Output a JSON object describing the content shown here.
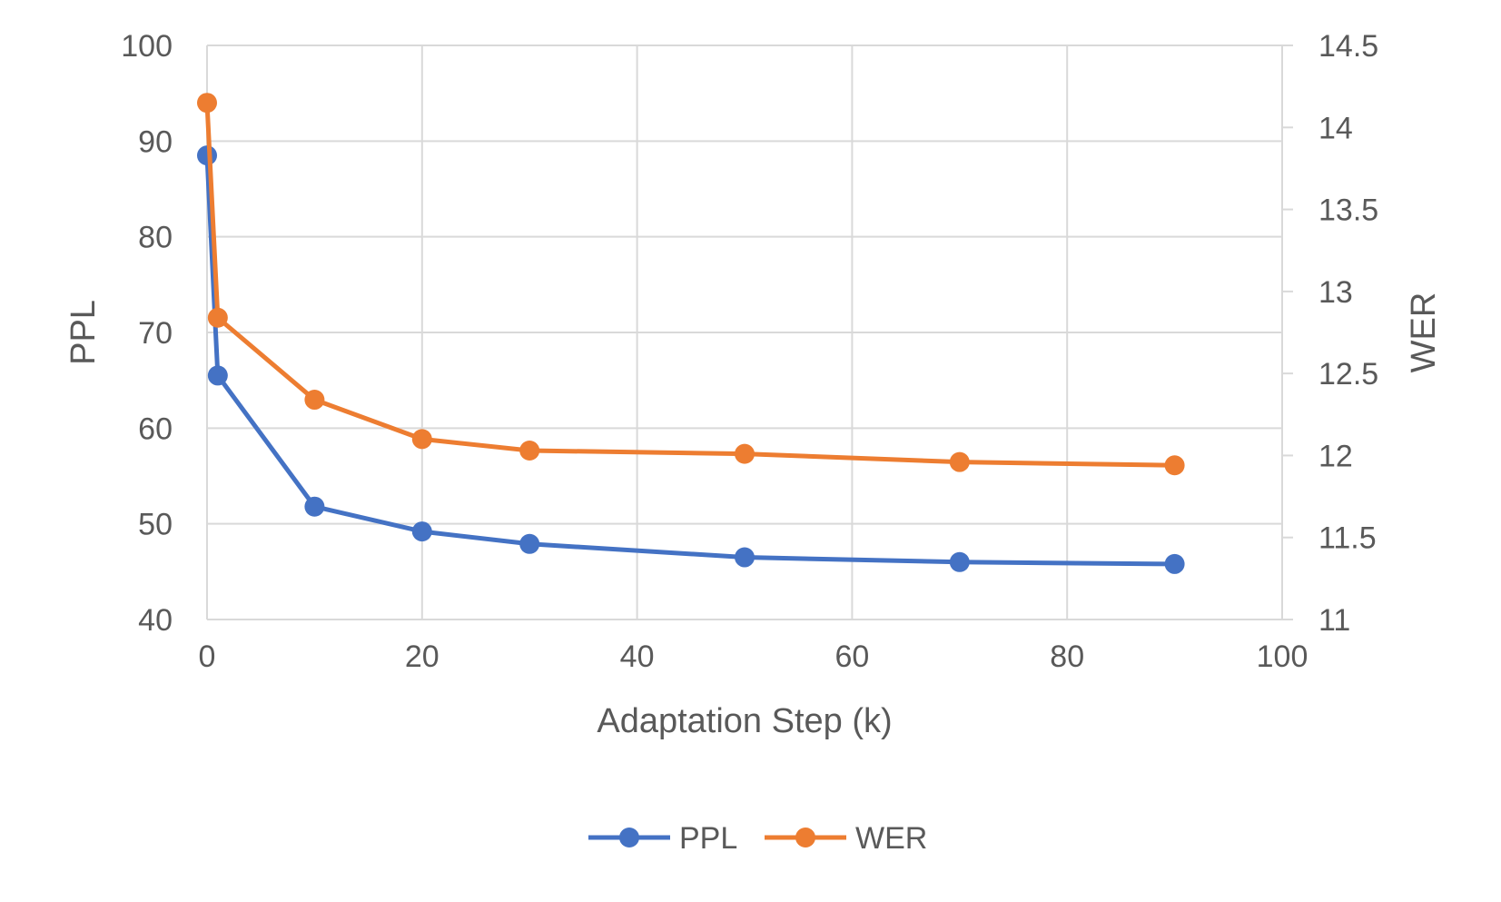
{
  "chart_data": {
    "type": "line",
    "title": "",
    "xlabel": "Adaptation Step (k)",
    "ylabel": "PPL",
    "y2label": "WER",
    "xlim": [
      0,
      100
    ],
    "ylim": [
      40,
      100
    ],
    "y2lim": [
      11,
      14.5
    ],
    "x_ticks": [
      "0",
      "20",
      "40",
      "60",
      "80",
      "100"
    ],
    "y_ticks": [
      "40",
      "50",
      "60",
      "70",
      "80",
      "90",
      "100"
    ],
    "y2_ticks": [
      "11",
      "11.5",
      "12",
      "12.5",
      "13",
      "13.5",
      "14",
      "14.5"
    ],
    "grid": true,
    "legend": "bottom",
    "series": [
      {
        "name": "PPL",
        "axis": "left",
        "color": "#4472c4",
        "x": [
          0,
          1,
          10,
          20,
          30,
          50,
          70,
          90
        ],
        "values": [
          88.5,
          65.5,
          51.8,
          49.2,
          47.9,
          46.5,
          46.0,
          45.8
        ]
      },
      {
        "name": "WER",
        "axis": "right",
        "color": "#ed7d31",
        "x": [
          0,
          1,
          10,
          20,
          30,
          50,
          70,
          90
        ],
        "values": [
          14.15,
          12.84,
          12.34,
          12.1,
          12.03,
          12.01,
          11.96,
          11.94
        ]
      }
    ]
  }
}
